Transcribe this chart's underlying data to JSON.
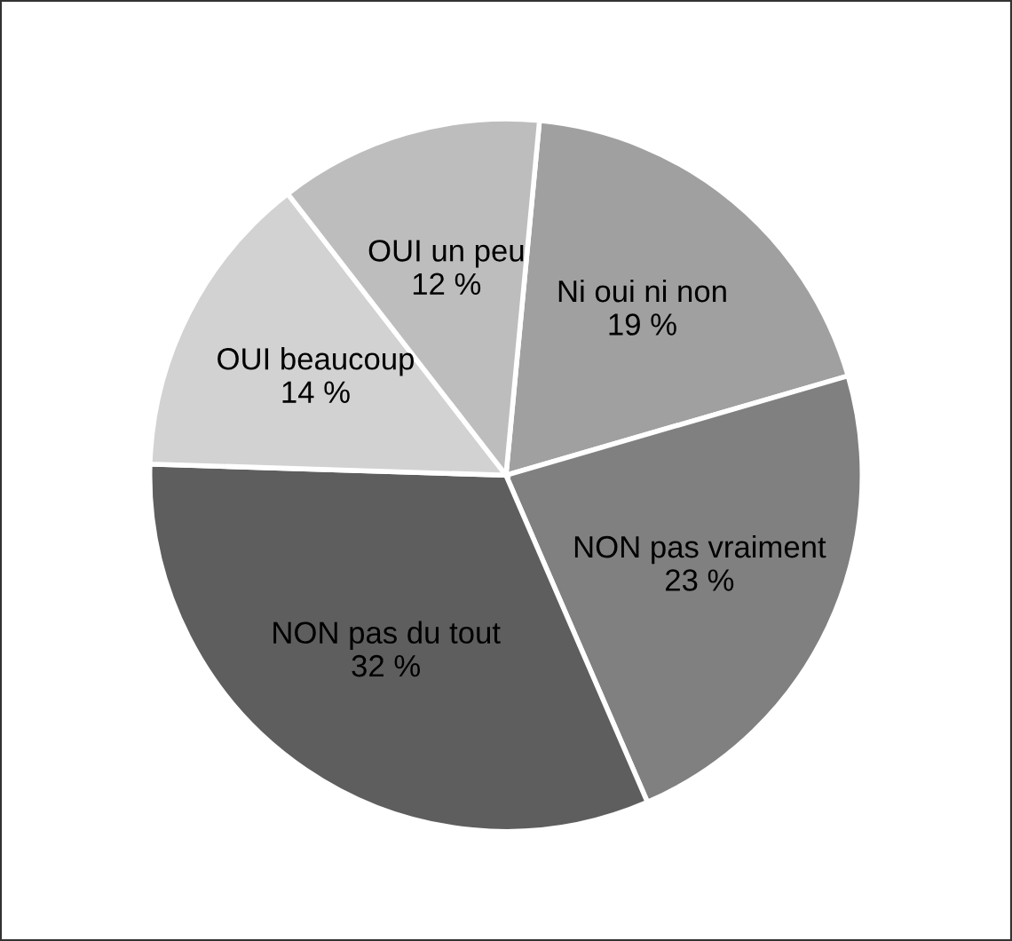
{
  "chart_data": {
    "type": "pie",
    "categories": [
      "Ni oui ni non",
      "NON pas vraiment",
      "NON pas du tout",
      "OUI beaucoup",
      "OUI un peu"
    ],
    "values": [
      19,
      23,
      32,
      14,
      12
    ],
    "colors": [
      "#a0a0a0",
      "#808080",
      "#5e5e5e",
      "#d2d2d2",
      "#bdbdbd"
    ],
    "value_labels": [
      "19 %",
      "23 %",
      "32 %",
      "14 %",
      "12 %"
    ]
  }
}
